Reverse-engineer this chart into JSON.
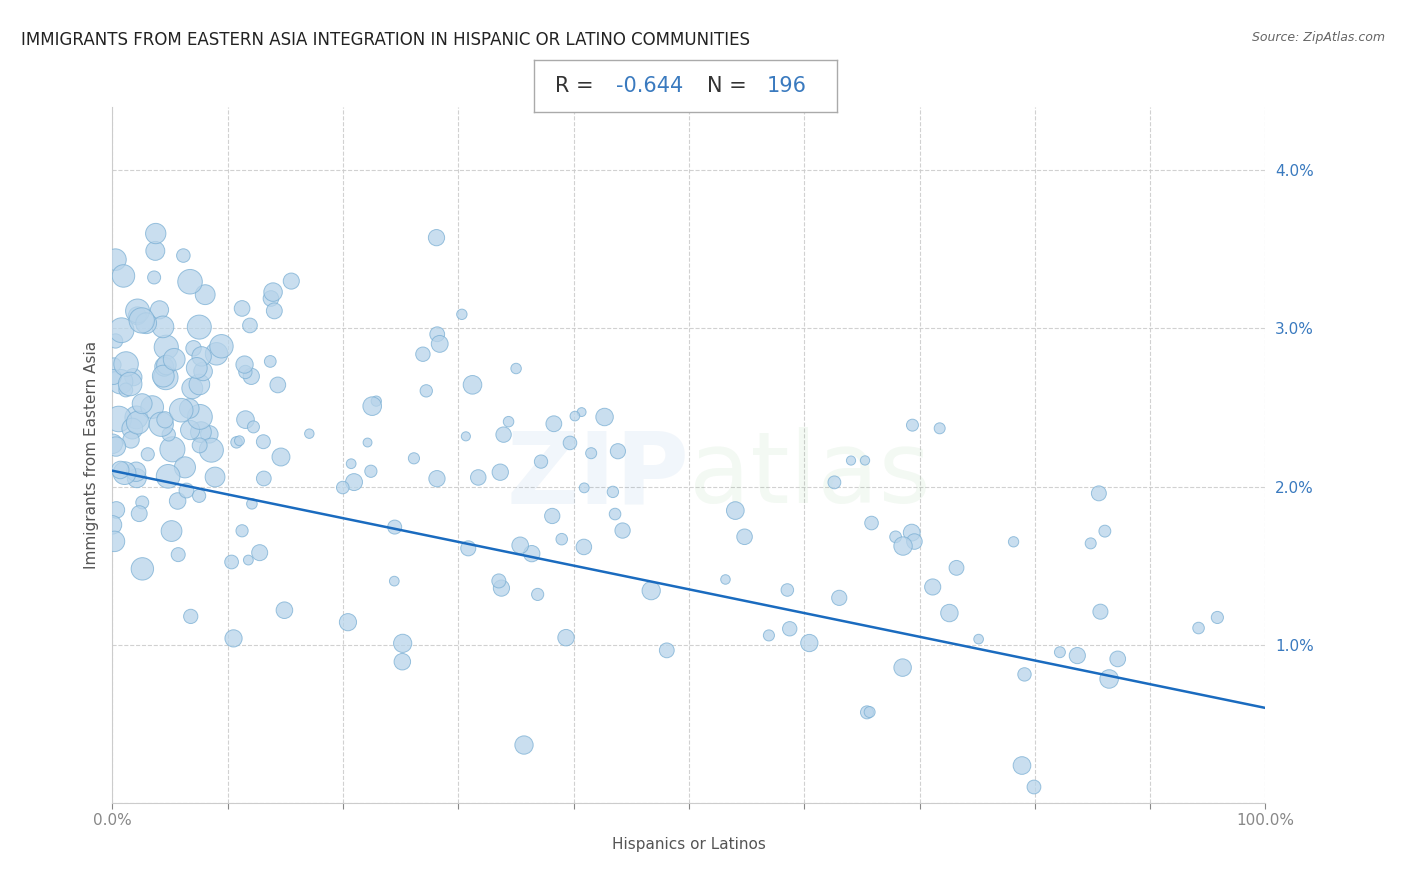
{
  "title": "IMMIGRANTS FROM EASTERN ASIA INTEGRATION IN HISPANIC OR LATINO COMMUNITIES",
  "source": "Source: ZipAtlas.com",
  "xlabel": "Hispanics or Latinos",
  "ylabel": "Immigrants from Eastern Asia",
  "R": -0.644,
  "N": 196,
  "scatter_color": "#b8d4ea",
  "scatter_edge_color": "#7aafd4",
  "line_color": "#1a6bbf",
  "watermark_color": "#1a6bbf",
  "xlim": [
    0.0,
    1.0
  ],
  "ylim": [
    0.0,
    0.044
  ],
  "x_ticks": [
    0.0,
    0.1,
    0.2,
    0.3,
    0.4,
    0.5,
    0.6,
    0.7,
    0.8,
    0.9,
    1.0
  ],
  "x_tick_labels": [
    "0.0%",
    "",
    "",
    "",
    "",
    "",
    "",
    "",
    "",
    "",
    "100.0%"
  ],
  "y_ticks": [
    0.0,
    0.01,
    0.02,
    0.03,
    0.04
  ],
  "y_tick_labels_right": [
    "",
    "1.0%",
    "2.0%",
    "3.0%",
    "4.0%"
  ],
  "grid_color": "#cccccc",
  "background_color": "#ffffff",
  "title_fontsize": 12,
  "axis_label_fontsize": 11,
  "tick_label_fontsize": 11,
  "annotation_fontsize": 15,
  "line_y_at_x0": 0.021,
  "line_y_at_x1": 0.006
}
